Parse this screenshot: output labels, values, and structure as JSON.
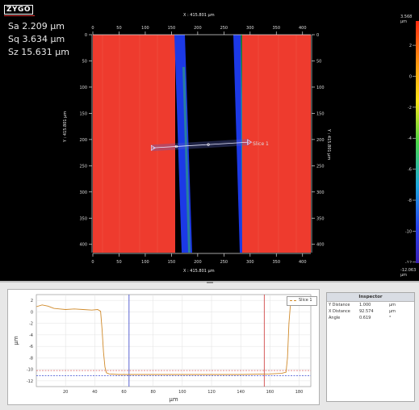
{
  "brand": {
    "logo_text": "ZYGO"
  },
  "stats": [
    {
      "label": "Sa",
      "value": "2.209",
      "unit": "µm"
    },
    {
      "label": "Sq",
      "value": "3.634",
      "unit": "µm"
    },
    {
      "label": "Sz",
      "value": "15.631",
      "unit": "µm"
    }
  ],
  "map": {
    "x_caption": "X : 415.801 µm",
    "y_caption": "Y : 415.801 µm",
    "x_ticks": [
      "0",
      "50",
      "100",
      "150",
      "200",
      "250",
      "300",
      "350",
      "400"
    ],
    "y_ticks": [
      "0",
      "50",
      "100",
      "150",
      "200",
      "250",
      "300",
      "350",
      "400"
    ],
    "x_range": [
      0,
      415.801
    ],
    "y_range": [
      0,
      415.801
    ],
    "slice_label": "Slice 1",
    "slice_start": [
      113,
      216
    ],
    "slice_end": [
      298,
      205
    ],
    "colors": {
      "high": "#ee3b2e",
      "low": "#1c39e6",
      "edge": "#32c45a",
      "void": "#000000"
    }
  },
  "colorbar": {
    "max_label": "3.568 µm",
    "min_label": "-12.063 µm",
    "ticks": [
      "2",
      "0",
      "-2",
      "-4",
      "-6",
      "-8",
      "-10",
      "-12"
    ],
    "range": [
      -12.063,
      3.568
    ]
  },
  "profile": {
    "ylabel": "µm",
    "xlabel": "µm",
    "legend": "Slice 1",
    "y_ticks": [
      "2",
      "0",
      "-2",
      "-4",
      "-6",
      "-8",
      "-10",
      "-12"
    ],
    "x_ticks": [
      "20",
      "40",
      "60",
      "80",
      "100",
      "120",
      "140",
      "160",
      "180"
    ],
    "ylim": [
      -13,
      3
    ],
    "xlim": [
      0,
      188
    ],
    "cursor_blue_x": 63.5,
    "cursor_red_x": 156.1,
    "ref_red_y": -10.2,
    "ref_blue_y": -11.1,
    "line_color": "#d08a2a",
    "points": [
      [
        0,
        0.9
      ],
      [
        4,
        1.2
      ],
      [
        8,
        1.0
      ],
      [
        12,
        0.6
      ],
      [
        16,
        0.5
      ],
      [
        20,
        0.4
      ],
      [
        26,
        0.5
      ],
      [
        32,
        0.4
      ],
      [
        38,
        0.3
      ],
      [
        42,
        0.4
      ],
      [
        44,
        0.1
      ],
      [
        45,
        -3
      ],
      [
        46,
        -7
      ],
      [
        47,
        -9.6
      ],
      [
        48,
        -10.6
      ],
      [
        50,
        -10.8
      ],
      [
        56,
        -10.9
      ],
      [
        62,
        -10.9
      ],
      [
        70,
        -10.9
      ],
      [
        80,
        -10.9
      ],
      [
        100,
        -10.9
      ],
      [
        120,
        -10.9
      ],
      [
        140,
        -10.9
      ],
      [
        160,
        -10.8
      ],
      [
        168,
        -10.7
      ],
      [
        171,
        -10.5
      ],
      [
        172,
        -8
      ],
      [
        173,
        -2
      ],
      [
        174,
        1.2
      ],
      [
        176,
        1.4
      ],
      [
        180,
        1.4
      ],
      [
        184,
        1.5
      ]
    ]
  },
  "inspector": {
    "title": "Inspector",
    "rows": [
      {
        "label": "Y Distance",
        "value": "1.000",
        "unit": "µm"
      },
      {
        "label": "X Distance",
        "value": "92.574",
        "unit": "µm"
      },
      {
        "label": "Angle",
        "value": "0.619",
        "unit": "°"
      }
    ]
  }
}
